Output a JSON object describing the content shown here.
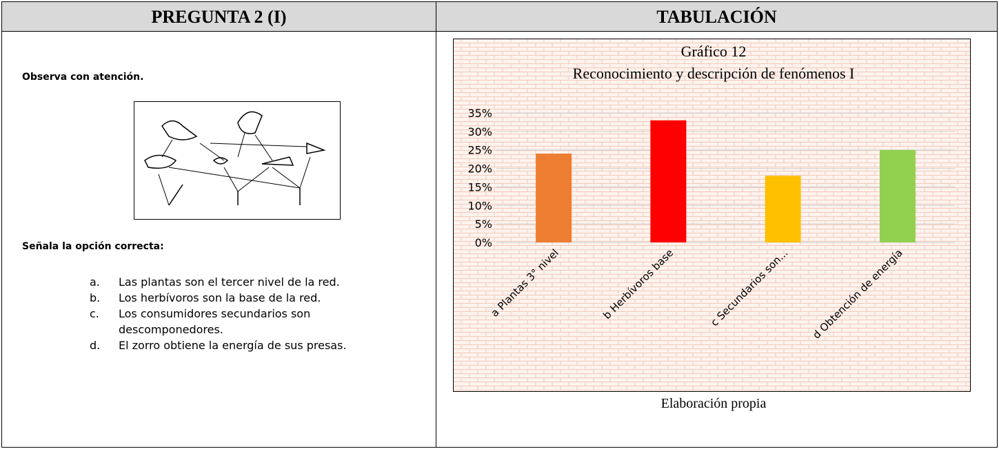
{
  "table": {
    "headers": [
      "PREGUNTA 2 (I)",
      "TABULACIÓN"
    ],
    "left": {
      "instruction": "Observa con atención.",
      "prompt": "Señala la opción correcta:",
      "options": [
        {
          "marker": "a.",
          "text": "Las plantas son el tercer nivel de la red."
        },
        {
          "marker": "b.",
          "text": "Los herbívoros son la base de la red."
        },
        {
          "marker": "c.",
          "text": "Los consumidores secundarios son descomponedores."
        },
        {
          "marker": "d.",
          "text": "El zorro obtiene la energía de sus presas."
        }
      ]
    },
    "caption": "Elaboración propia"
  },
  "chart_data": {
    "type": "bar",
    "title": "Gráfico 12",
    "subtitle": "Reconocimiento y descripción de fenómenos I",
    "categories": [
      "a Plantas 3° nivel",
      "b Herbívoros base",
      "c Secundarios son...",
      "d Obtención de energía"
    ],
    "values": [
      24,
      33,
      18,
      25
    ],
    "colors": [
      "#ed7d31",
      "#ff0000",
      "#ffc000",
      "#92d050"
    ],
    "ylim": [
      0,
      35
    ],
    "yticks": [
      {
        "value": 0,
        "label": "0%"
      },
      {
        "value": 5,
        "label": "5%"
      },
      {
        "value": 10,
        "label": "10%"
      },
      {
        "value": 15,
        "label": "15%"
      },
      {
        "value": 20,
        "label": "20%"
      },
      {
        "value": 25,
        "label": "25%"
      },
      {
        "value": 30,
        "label": "30%"
      },
      {
        "value": 35,
        "label": "35%"
      }
    ],
    "grid": true
  }
}
